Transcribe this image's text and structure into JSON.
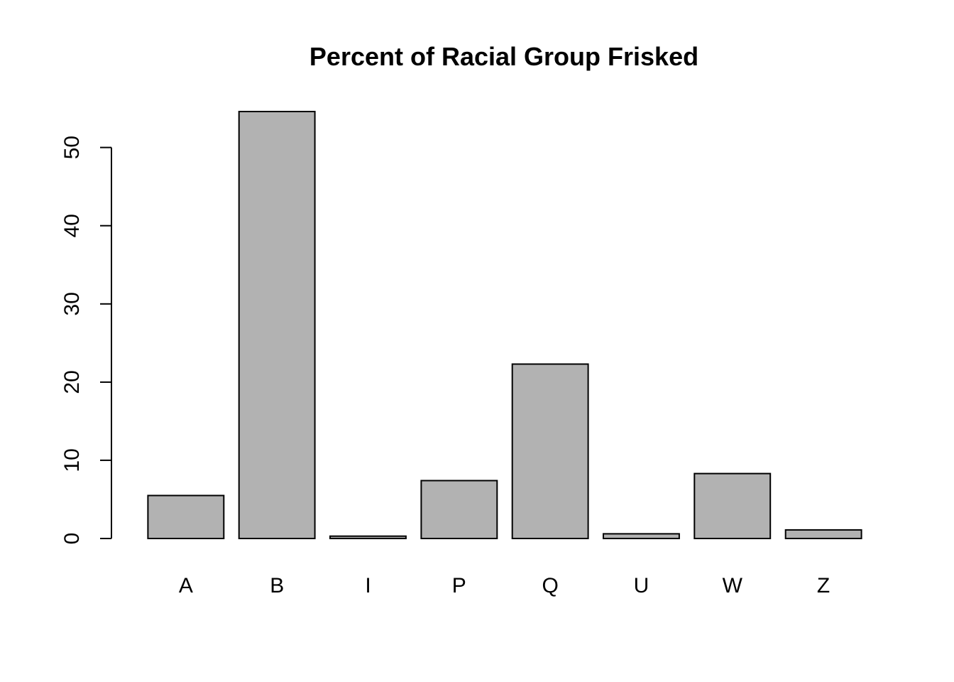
{
  "chart_data": {
    "type": "bar",
    "title": "Percent of Racial Group Frisked",
    "xlabel": "",
    "ylabel": "",
    "categories": [
      "A",
      "B",
      "I",
      "P",
      "Q",
      "U",
      "W",
      "Z"
    ],
    "values": [
      5.5,
      54.6,
      0.3,
      7.4,
      22.3,
      0.6,
      8.3,
      1.1
    ],
    "ylim": [
      0,
      54.6
    ],
    "yticks": [
      0,
      10,
      20,
      30,
      40,
      50
    ],
    "ytick_labels": [
      "0",
      "10",
      "20",
      "30",
      "40",
      "50"
    ],
    "grid": false,
    "legend": null,
    "bar_color": "#b2b2b2",
    "border_color": "#000000"
  }
}
